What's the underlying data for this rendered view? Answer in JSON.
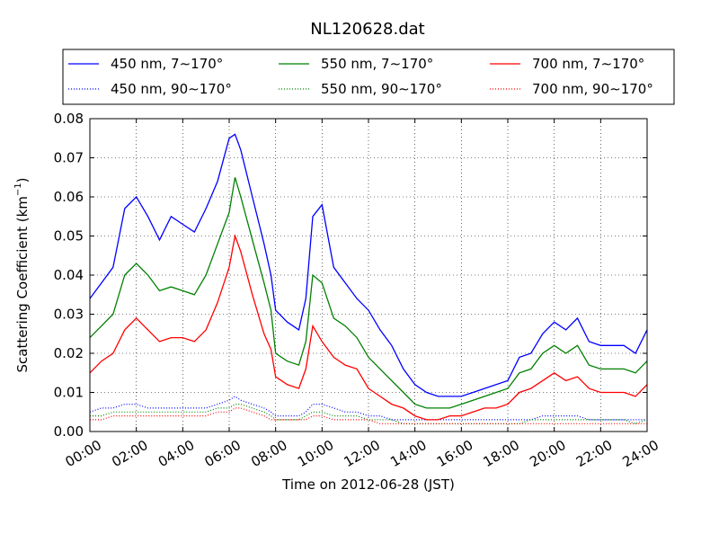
{
  "chart_data": {
    "type": "line",
    "title": "NL120628.dat",
    "xlabel": "Time on 2012-06-28 (JST)",
    "ylabel": "Scattering Coefficient (km",
    "ylabel_sup": "−1",
    "ylabel_end": ")",
    "x_unit": "hours",
    "xlim": [
      0,
      24
    ],
    "ylim": [
      0,
      0.08
    ],
    "grid": true,
    "legend_position": "top",
    "x_ticks": [
      0,
      2,
      4,
      6,
      8,
      10,
      12,
      14,
      16,
      18,
      20,
      22,
      24
    ],
    "x_tick_labels": [
      "00:00",
      "02:00",
      "04:00",
      "06:00",
      "08:00",
      "10:00",
      "12:00",
      "14:00",
      "16:00",
      "18:00",
      "20:00",
      "22:00",
      "24:00"
    ],
    "y_ticks": [
      0,
      0.01,
      0.02,
      0.03,
      0.04,
      0.05,
      0.06,
      0.07,
      0.08
    ],
    "y_tick_labels": [
      "0.00",
      "0.01",
      "0.02",
      "0.03",
      "0.04",
      "0.05",
      "0.06",
      "0.07",
      "0.08"
    ],
    "x": [
      0.0,
      0.5,
      1.0,
      1.5,
      2.0,
      2.5,
      3.0,
      3.5,
      4.0,
      4.5,
      5.0,
      5.5,
      6.0,
      6.25,
      6.5,
      7.0,
      7.5,
      7.8,
      8.0,
      8.5,
      9.0,
      9.3,
      9.6,
      10.0,
      10.5,
      11.0,
      11.5,
      12.0,
      12.5,
      13.0,
      13.5,
      14.0,
      14.5,
      15.0,
      15.5,
      16.0,
      16.5,
      17.0,
      17.5,
      18.0,
      18.5,
      19.0,
      19.5,
      20.0,
      20.5,
      21.0,
      21.5,
      22.0,
      22.5,
      23.0,
      23.5,
      24.0
    ],
    "series": [
      {
        "name": "450 nm, 7∼170°",
        "color": "#0000ff",
        "style": "solid",
        "values": [
          0.034,
          0.038,
          0.042,
          0.057,
          0.06,
          0.055,
          0.049,
          0.055,
          0.053,
          0.051,
          0.057,
          0.064,
          0.075,
          0.076,
          0.072,
          0.06,
          0.048,
          0.04,
          0.031,
          0.028,
          0.026,
          0.034,
          0.055,
          0.058,
          0.042,
          0.038,
          0.034,
          0.031,
          0.026,
          0.022,
          0.016,
          0.012,
          0.01,
          0.009,
          0.009,
          0.009,
          0.01,
          0.011,
          0.012,
          0.013,
          0.019,
          0.02,
          0.025,
          0.028,
          0.026,
          0.029,
          0.023,
          0.022,
          0.022,
          0.022,
          0.02,
          0.026
        ]
      },
      {
        "name": "550 nm, 7∼170°",
        "color": "#008000",
        "style": "solid",
        "values": [
          0.024,
          0.027,
          0.03,
          0.04,
          0.043,
          0.04,
          0.036,
          0.037,
          0.036,
          0.035,
          0.04,
          0.048,
          0.056,
          0.065,
          0.06,
          0.049,
          0.038,
          0.031,
          0.02,
          0.018,
          0.017,
          0.023,
          0.04,
          0.038,
          0.029,
          0.027,
          0.024,
          0.019,
          0.016,
          0.013,
          0.01,
          0.007,
          0.006,
          0.006,
          0.006,
          0.007,
          0.008,
          0.009,
          0.01,
          0.011,
          0.015,
          0.016,
          0.02,
          0.022,
          0.02,
          0.022,
          0.017,
          0.016,
          0.016,
          0.016,
          0.015,
          0.018
        ]
      },
      {
        "name": "700 nm, 7∼170°",
        "color": "#ff0000",
        "style": "solid",
        "values": [
          0.015,
          0.018,
          0.02,
          0.026,
          0.029,
          0.026,
          0.023,
          0.024,
          0.024,
          0.023,
          0.026,
          0.033,
          0.042,
          0.05,
          0.046,
          0.035,
          0.025,
          0.021,
          0.014,
          0.012,
          0.011,
          0.016,
          0.027,
          0.023,
          0.019,
          0.017,
          0.016,
          0.011,
          0.009,
          0.007,
          0.006,
          0.004,
          0.003,
          0.003,
          0.004,
          0.004,
          0.005,
          0.006,
          0.006,
          0.007,
          0.01,
          0.011,
          0.013,
          0.015,
          0.013,
          0.014,
          0.011,
          0.01,
          0.01,
          0.01,
          0.009,
          0.012
        ]
      },
      {
        "name": "450 nm, 90∼170°",
        "color": "#0000ff",
        "style": "dotted",
        "values": [
          0.005,
          0.006,
          0.006,
          0.007,
          0.007,
          0.006,
          0.006,
          0.006,
          0.006,
          0.006,
          0.006,
          0.007,
          0.008,
          0.009,
          0.008,
          0.007,
          0.006,
          0.005,
          0.004,
          0.004,
          0.004,
          0.005,
          0.007,
          0.007,
          0.006,
          0.005,
          0.005,
          0.004,
          0.004,
          0.003,
          0.003,
          0.003,
          0.003,
          0.003,
          0.003,
          0.003,
          0.003,
          0.003,
          0.003,
          0.003,
          0.003,
          0.003,
          0.004,
          0.004,
          0.004,
          0.004,
          0.003,
          0.003,
          0.003,
          0.003,
          0.003,
          0.003
        ]
      },
      {
        "name": "550 nm, 90∼170°",
        "color": "#008000",
        "style": "dotted",
        "values": [
          0.004,
          0.004,
          0.005,
          0.005,
          0.005,
          0.005,
          0.005,
          0.005,
          0.005,
          0.005,
          0.005,
          0.006,
          0.006,
          0.007,
          0.007,
          0.006,
          0.005,
          0.004,
          0.003,
          0.003,
          0.003,
          0.004,
          0.005,
          0.005,
          0.004,
          0.004,
          0.004,
          0.003,
          0.003,
          0.003,
          0.002,
          0.002,
          0.002,
          0.002,
          0.002,
          0.002,
          0.002,
          0.002,
          0.002,
          0.002,
          0.002,
          0.003,
          0.003,
          0.003,
          0.003,
          0.003,
          0.003,
          0.003,
          0.003,
          0.003,
          0.002,
          0.003
        ]
      },
      {
        "name": "700 nm, 90∼170°",
        "color": "#ff0000",
        "style": "dotted",
        "values": [
          0.003,
          0.003,
          0.004,
          0.004,
          0.004,
          0.004,
          0.004,
          0.004,
          0.004,
          0.004,
          0.004,
          0.005,
          0.005,
          0.006,
          0.006,
          0.005,
          0.004,
          0.003,
          0.003,
          0.003,
          0.003,
          0.003,
          0.004,
          0.004,
          0.003,
          0.003,
          0.003,
          0.003,
          0.002,
          0.002,
          0.002,
          0.002,
          0.002,
          0.002,
          0.002,
          0.002,
          0.002,
          0.002,
          0.002,
          0.002,
          0.002,
          0.002,
          0.002,
          0.002,
          0.002,
          0.002,
          0.002,
          0.002,
          0.002,
          0.002,
          0.002,
          0.002
        ]
      }
    ]
  }
}
